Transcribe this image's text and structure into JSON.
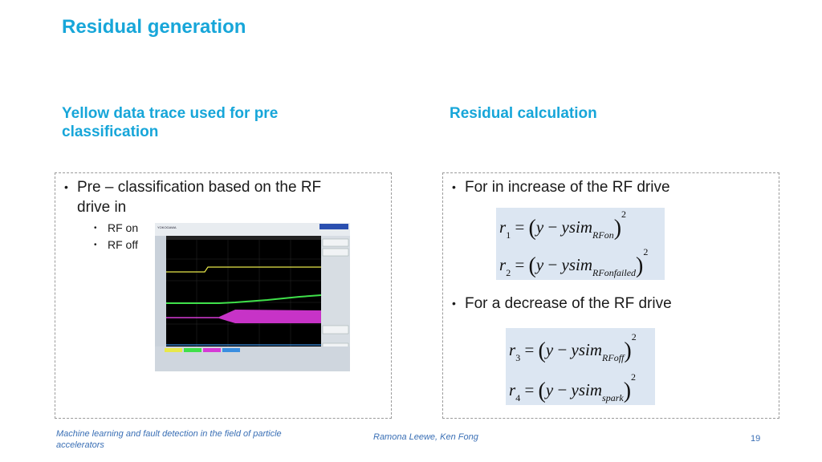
{
  "title": "Residual generation",
  "left": {
    "heading_line1": "Yellow data trace used for pre",
    "heading_line2": "classification",
    "bullet_line1": "Pre – classification based on the RF",
    "bullet_line2": "drive in",
    "sub_items": [
      "RF on",
      "RF off"
    ]
  },
  "right": {
    "heading": "Residual calculation",
    "bullet1": "For in increase of the RF drive",
    "bullet2": "For a decrease of the RF drive",
    "equations": [
      {
        "lhs": "r",
        "lhs_sub": "1",
        "rhs": "ysim",
        "rhs_sub": "RFon",
        "power": "2"
      },
      {
        "lhs": "r",
        "lhs_sub": "2",
        "rhs": "ysim",
        "rhs_sub": "RFonfailed",
        "power": "2"
      },
      {
        "lhs": "r",
        "lhs_sub": "3",
        "rhs": "ysim",
        "rhs_sub": "RFoff",
        "power": "2"
      },
      {
        "lhs": "r",
        "lhs_sub": "4",
        "rhs": "ysim",
        "rhs_sub": "spark",
        "power": "2"
      }
    ]
  },
  "scope": {
    "brand": "YOKOGAWA",
    "accent_colors": {
      "yellow": "#e8e84a",
      "green": "#3fe04a",
      "magenta": "#d63ad6",
      "blue": "#3a8ee0"
    }
  },
  "footer": {
    "left_line1": "Machine learning and fault detection in the field of particle",
    "left_line2": "accelerators",
    "center": "Ramona Leewe, Ken Fong",
    "page": "19"
  }
}
